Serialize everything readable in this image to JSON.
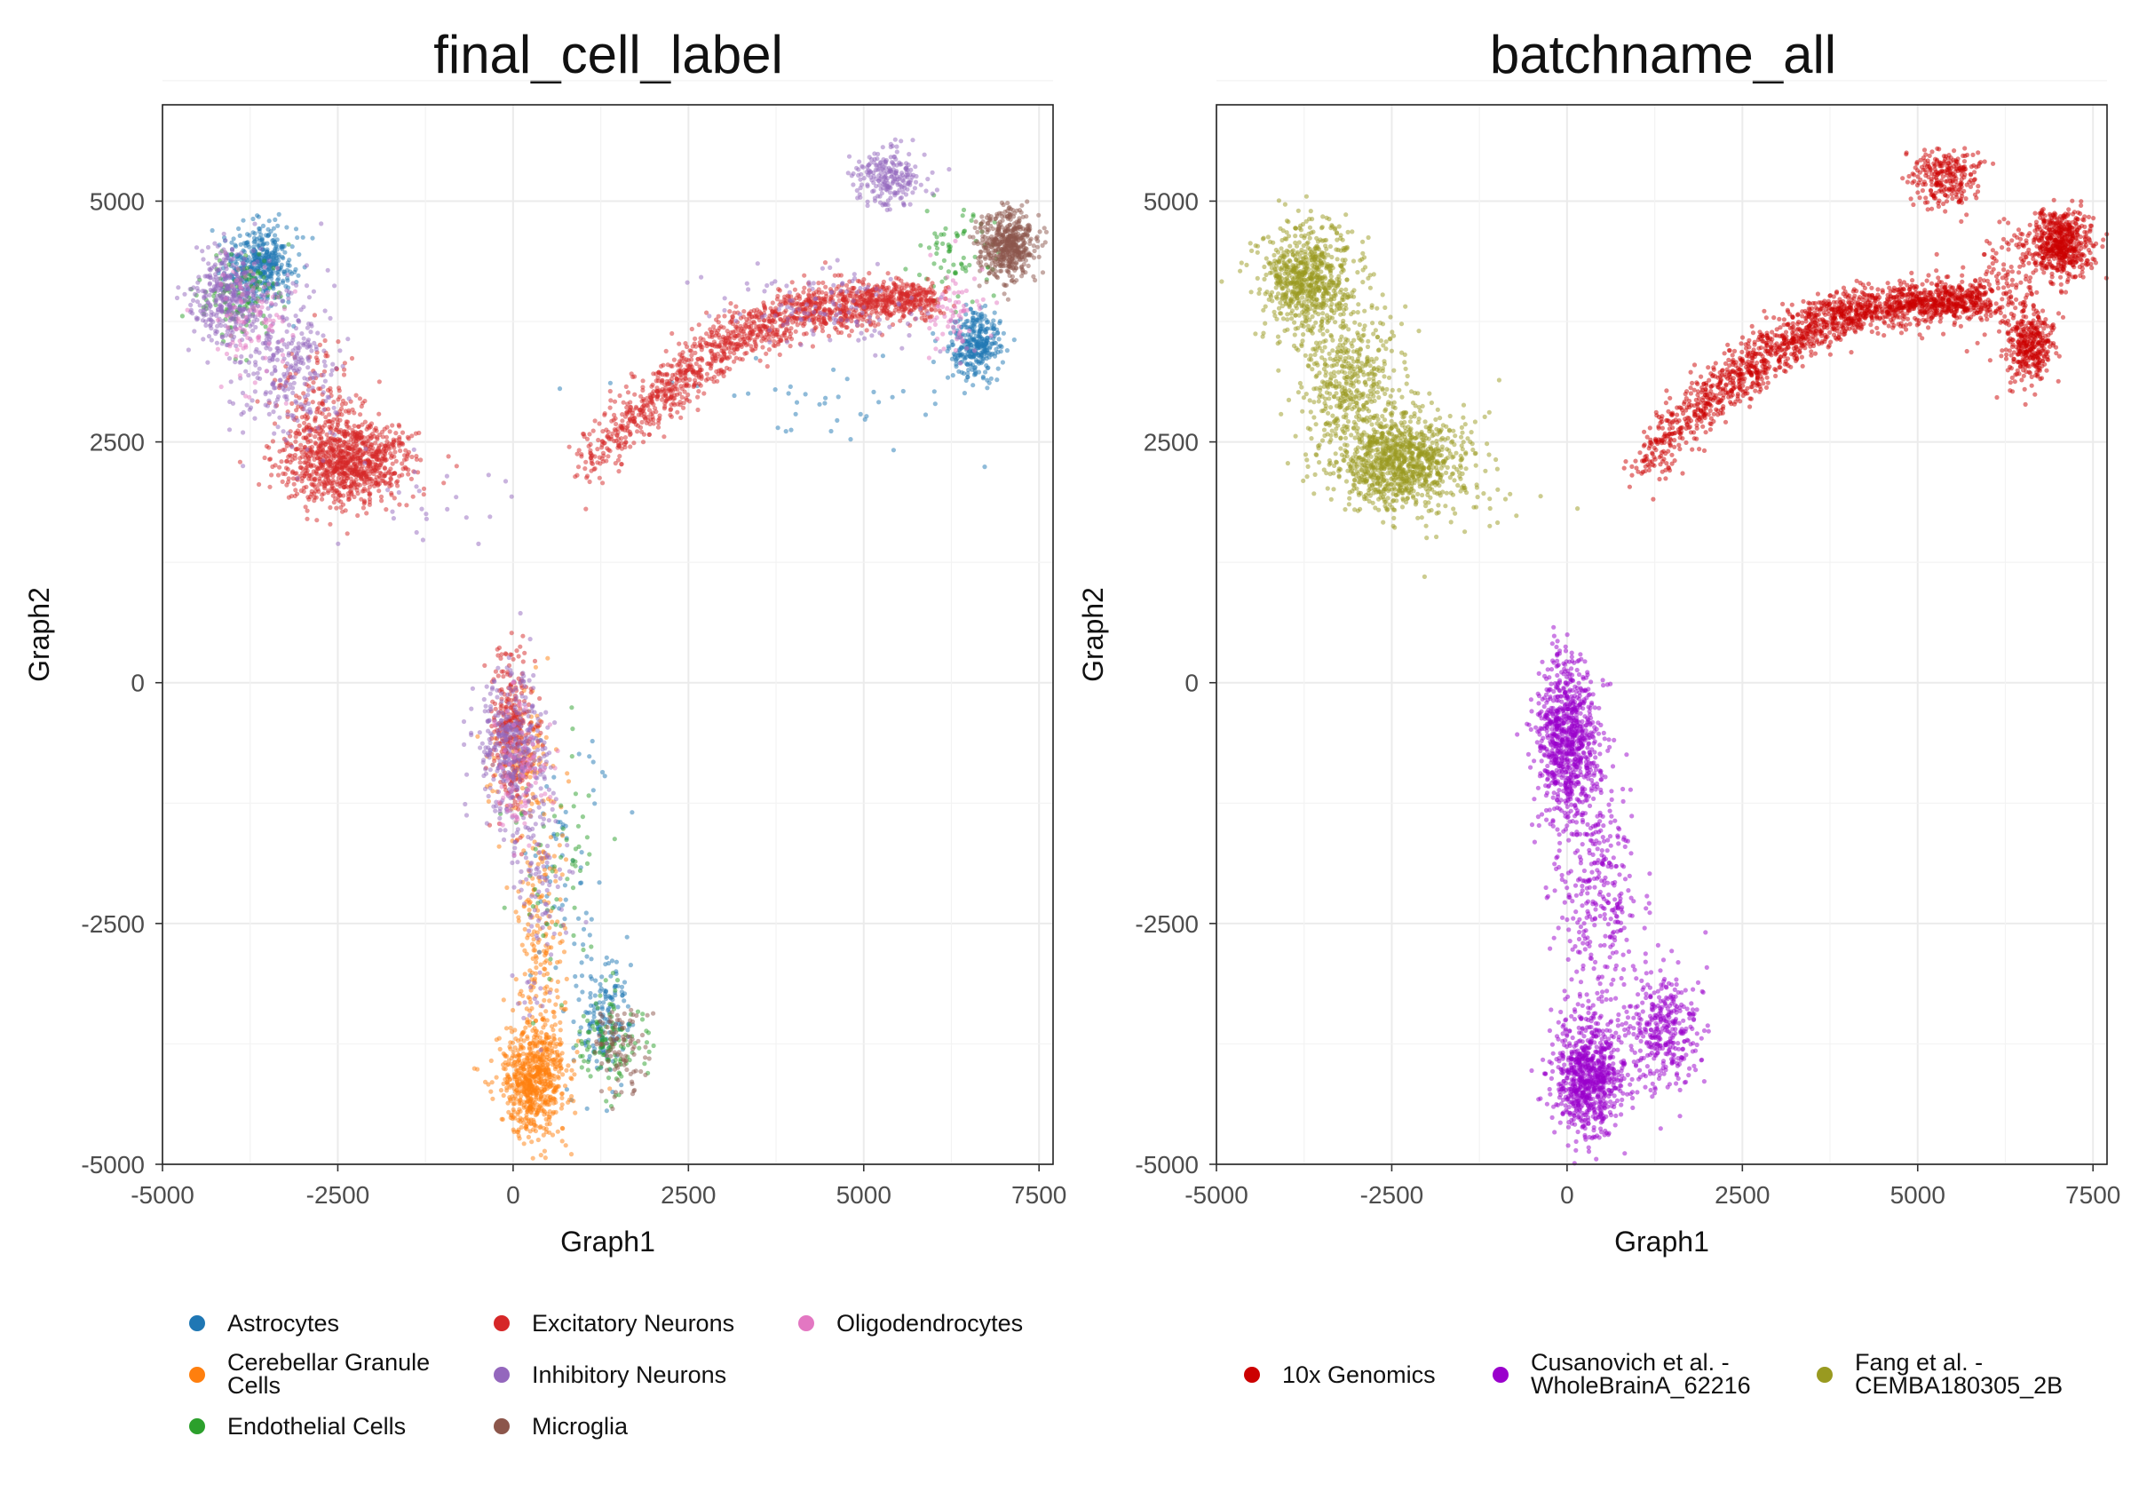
{
  "chart_data": [
    {
      "type": "scatter",
      "title": "final_cell_label",
      "xlabel": "Graph1",
      "ylabel": "Graph2",
      "xlim": [
        -5000,
        7700
      ],
      "ylim": [
        -5000,
        6000
      ],
      "xticks": [
        -5000,
        -2500,
        0,
        2500,
        5000,
        7500
      ],
      "xtick_labels": [
        "-5000",
        "-2500",
        "0",
        "2500",
        "5000",
        "7500"
      ],
      "yticks": [
        -5000,
        -2500,
        0,
        2500,
        5000
      ],
      "ytick_labels": [
        "-5000",
        "-2500",
        "0",
        "2500",
        "5000"
      ],
      "grid": true,
      "legend_position": "bottom",
      "series": [
        {
          "name": "Astrocytes",
          "color": "#1f77b4",
          "clusters": [
            {
              "x": -3600,
              "y": 4350,
              "sx": 250,
              "sy": 200,
              "n": 420
            },
            {
              "x": 6600,
              "y": 3500,
              "sx": 180,
              "sy": 180,
              "n": 320
            },
            {
              "x": 1300,
              "y": -3500,
              "sx": 200,
              "sy": 300,
              "n": 160
            },
            {
              "x": 4200,
              "y": 2900,
              "sx": 1200,
              "sy": 300,
              "n": 40
            },
            {
              "x": 800,
              "y": -1800,
              "sx": 300,
              "sy": 700,
              "n": 60
            }
          ]
        },
        {
          "name": "Cerebellar Granule Cells",
          "color": "#ff7f0e",
          "clusters": [
            {
              "x": 300,
              "y": -4100,
              "sx": 230,
              "sy": 300,
              "n": 700
            },
            {
              "x": 380,
              "y": -2700,
              "sx": 180,
              "sy": 700,
              "n": 180
            },
            {
              "x": 200,
              "y": -800,
              "sx": 250,
              "sy": 400,
              "n": 120
            }
          ]
        },
        {
          "name": "Endothelial Cells",
          "color": "#2ca02c",
          "clusters": [
            {
              "x": -3900,
              "y": 4000,
              "sx": 250,
              "sy": 250,
              "n": 120
            },
            {
              "x": 6300,
              "y": 4500,
              "sx": 300,
              "sy": 250,
              "n": 70
            },
            {
              "x": 1400,
              "y": -3700,
              "sx": 250,
              "sy": 250,
              "n": 120
            },
            {
              "x": 700,
              "y": -1900,
              "sx": 300,
              "sy": 700,
              "n": 60
            }
          ]
        },
        {
          "name": "Excitatory Neurons",
          "color": "#d62728",
          "clusters": [
            {
              "x": -2400,
              "y": 2300,
              "sx": 450,
              "sy": 230,
              "n": 950
            },
            {
              "x": -2800,
              "y": 2900,
              "sx": 300,
              "sy": 300,
              "n": 120
            },
            {
              "x": 0,
              "y": -500,
              "sx": 150,
              "sy": 400,
              "n": 300
            }
          ],
          "curves": [
            {
              "path": [
                [
                  1000,
                  2200
                ],
                [
                  2000,
                  2950
                ],
                [
                  3000,
                  3500
                ],
                [
                  4000,
                  3850
                ],
                [
                  5000,
                  3950
                ],
                [
                  6000,
                  3980
                ]
              ],
              "spread": 170,
              "n": 1500
            }
          ]
        },
        {
          "name": "Inhibitory Neurons",
          "color": "#9467bd",
          "clusters": [
            {
              "x": -4100,
              "y": 4000,
              "sx": 250,
              "sy": 250,
              "n": 350
            },
            {
              "x": -3200,
              "y": 3300,
              "sx": 350,
              "sy": 400,
              "n": 280
            },
            {
              "x": 5400,
              "y": 5250,
              "sx": 250,
              "sy": 150,
              "n": 220
            },
            {
              "x": 0,
              "y": -700,
              "sx": 220,
              "sy": 400,
              "n": 380
            },
            {
              "x": 350,
              "y": -2000,
              "sx": 220,
              "sy": 700,
              "n": 120
            },
            {
              "x": 4500,
              "y": 3900,
              "sx": 800,
              "sy": 200,
              "n": 120
            },
            {
              "x": -1200,
              "y": 1900,
              "sx": 500,
              "sy": 250,
              "n": 25
            }
          ]
        },
        {
          "name": "Microglia",
          "color": "#8c564b",
          "clusters": [
            {
              "x": 7050,
              "y": 4550,
              "sx": 200,
              "sy": 170,
              "n": 500
            },
            {
              "x": 1500,
              "y": -3800,
              "sx": 200,
              "sy": 250,
              "n": 100
            }
          ]
        },
        {
          "name": "Oligodendrocytes",
          "color": "#e377c2",
          "clusters": [
            {
              "x": -3700,
              "y": 3800,
              "sx": 300,
              "sy": 300,
              "n": 100
            },
            {
              "x": 6300,
              "y": 3800,
              "sx": 250,
              "sy": 250,
              "n": 70
            },
            {
              "x": 100,
              "y": -900,
              "sx": 200,
              "sy": 400,
              "n": 80
            }
          ]
        }
      ],
      "legend": {
        "columns": [
          [
            "Astrocytes",
            "Cerebellar Granule\nCells",
            "Endothelial Cells"
          ],
          [
            "Excitatory Neurons",
            "Inhibitory Neurons",
            "Microglia"
          ],
          [
            "Oligodendrocytes"
          ]
        ],
        "colors": [
          [
            "#1f77b4",
            "#ff7f0e",
            "#2ca02c"
          ],
          [
            "#d62728",
            "#9467bd",
            "#8c564b"
          ],
          [
            "#e377c2"
          ]
        ]
      }
    },
    {
      "type": "scatter",
      "title": "batchname_all",
      "xlabel": "Graph1",
      "ylabel": "Graph2",
      "xlim": [
        -5000,
        7700
      ],
      "ylim": [
        -5000,
        6000
      ],
      "xticks": [
        -5000,
        -2500,
        0,
        2500,
        5000,
        7500
      ],
      "xtick_labels": [
        "-5000",
        "-2500",
        "0",
        "2500",
        "5000",
        "7500"
      ],
      "yticks": [
        -5000,
        -2500,
        0,
        2500,
        5000
      ],
      "ytick_labels": [
        "-5000",
        "-2500",
        "0",
        "2500",
        "5000"
      ],
      "grid": true,
      "legend_position": "bottom",
      "series": [
        {
          "name": "10x Genomics",
          "color": "#cc0000",
          "clusters": [
            {
              "x": 7050,
              "y": 4550,
              "sx": 220,
              "sy": 170,
              "n": 550
            },
            {
              "x": 6600,
              "y": 3500,
              "sx": 180,
              "sy": 180,
              "n": 320
            },
            {
              "x": 5400,
              "y": 5250,
              "sx": 250,
              "sy": 150,
              "n": 250
            },
            {
              "x": 6300,
              "y": 4100,
              "sx": 300,
              "sy": 350,
              "n": 150
            }
          ],
          "curves": [
            {
              "path": [
                [
                  1000,
                  2200
                ],
                [
                  2000,
                  2950
                ],
                [
                  3000,
                  3500
                ],
                [
                  4000,
                  3850
                ],
                [
                  5000,
                  3950
                ],
                [
                  6000,
                  3980
                ]
              ],
              "spread": 170,
              "n": 1700
            }
          ]
        },
        {
          "name": "Cusanovich et al. - WholeBrainA_62216",
          "color": "#9a00cc",
          "clusters": [
            {
              "x": 0,
              "y": -600,
              "sx": 220,
              "sy": 400,
              "n": 850
            },
            {
              "x": 300,
              "y": -4100,
              "sx": 250,
              "sy": 300,
              "n": 800
            },
            {
              "x": 1400,
              "y": -3600,
              "sx": 250,
              "sy": 300,
              "n": 350
            },
            {
              "x": 450,
              "y": -2200,
              "sx": 280,
              "sy": 700,
              "n": 350
            }
          ]
        },
        {
          "name": "Fang et al. - CEMBA180305_2B",
          "color": "#999a20",
          "clusters": [
            {
              "x": -3700,
              "y": 4200,
              "sx": 330,
              "sy": 280,
              "n": 700
            },
            {
              "x": -2400,
              "y": 2300,
              "sx": 470,
              "sy": 250,
              "n": 1000
            },
            {
              "x": -3100,
              "y": 3200,
              "sx": 350,
              "sy": 400,
              "n": 450
            },
            {
              "x": -1200,
              "y": 1900,
              "sx": 500,
              "sy": 250,
              "n": 25
            }
          ]
        }
      ],
      "legend": {
        "columns": [
          [
            "10x Genomics"
          ],
          [
            "Cusanovich et al. -\nWholeBrainA_62216"
          ],
          [
            "Fang et al. -\nCEMBA180305_2B"
          ]
        ],
        "colors": [
          [
            "#cc0000"
          ],
          [
            "#9a00cc"
          ],
          [
            "#999a20"
          ]
        ]
      }
    }
  ]
}
